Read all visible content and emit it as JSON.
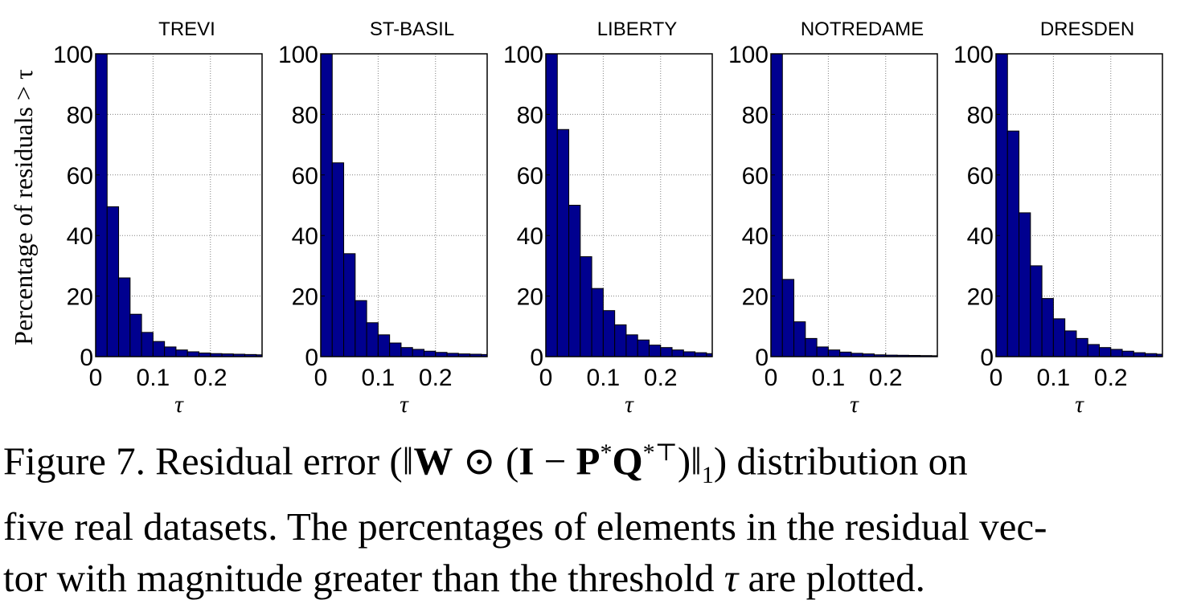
{
  "chart_data": [
    {
      "type": "bar",
      "title": "TREVI",
      "xlabel": "τ",
      "ylabel": "Percentage of residuals > τ",
      "xlim": [
        0,
        0.29
      ],
      "ylim": [
        0,
        100
      ],
      "xticks": [
        0,
        0.1,
        0.2
      ],
      "xtick_labels": [
        "0",
        "0.1",
        "0.2"
      ],
      "yticks": [
        0,
        20,
        40,
        60,
        80,
        100
      ],
      "ytick_labels": [
        "0",
        "20",
        "40",
        "60",
        "80",
        "100"
      ],
      "bin_width": 0.02,
      "grid": true,
      "x": [
        0,
        0.02,
        0.04,
        0.06,
        0.08,
        0.1,
        0.12,
        0.14,
        0.16,
        0.18,
        0.2,
        0.22,
        0.24,
        0.26,
        0.28
      ],
      "values": [
        100,
        49.5,
        26,
        14,
        8,
        5,
        3.2,
        2.2,
        1.6,
        1.2,
        1,
        0.9,
        0.8,
        0.7,
        0.6
      ]
    },
    {
      "type": "bar",
      "title": "ST-BASIL",
      "xlabel": "τ",
      "xlim": [
        0,
        0.29
      ],
      "ylim": [
        0,
        100
      ],
      "xticks": [
        0,
        0.1,
        0.2
      ],
      "xtick_labels": [
        "0",
        "0.1",
        "0.2"
      ],
      "yticks": [
        0,
        20,
        40,
        60,
        80,
        100
      ],
      "ytick_labels": [
        "0",
        "20",
        "40",
        "60",
        "80",
        "100"
      ],
      "bin_width": 0.02,
      "grid": true,
      "x": [
        0,
        0.02,
        0.04,
        0.06,
        0.08,
        0.1,
        0.12,
        0.14,
        0.16,
        0.18,
        0.2,
        0.22,
        0.24,
        0.26,
        0.28
      ],
      "values": [
        100,
        64,
        34,
        18.5,
        11.2,
        7.2,
        4.5,
        3,
        2.4,
        1.8,
        1.4,
        1.1,
        0.9,
        0.8,
        0.7
      ]
    },
    {
      "type": "bar",
      "title": "LIBERTY",
      "xlabel": "τ",
      "xlim": [
        0,
        0.29
      ],
      "ylim": [
        0,
        100
      ],
      "xticks": [
        0,
        0.1,
        0.2
      ],
      "xtick_labels": [
        "0",
        "0.1",
        "0.2"
      ],
      "yticks": [
        0,
        20,
        40,
        60,
        80,
        100
      ],
      "ytick_labels": [
        "0",
        "20",
        "40",
        "60",
        "80",
        "100"
      ],
      "bin_width": 0.02,
      "grid": true,
      "x": [
        0,
        0.02,
        0.04,
        0.06,
        0.08,
        0.1,
        0.12,
        0.14,
        0.16,
        0.18,
        0.2,
        0.22,
        0.24,
        0.26,
        0.28
      ],
      "values": [
        100,
        75,
        50,
        33,
        22.5,
        15.2,
        10.5,
        7.2,
        5.5,
        3.8,
        3,
        2.2,
        1.6,
        1.3,
        1
      ]
    },
    {
      "type": "bar",
      "title": "NOTREDAME",
      "xlabel": "τ",
      "xlim": [
        0,
        0.29
      ],
      "ylim": [
        0,
        100
      ],
      "xticks": [
        0,
        0.1,
        0.2
      ],
      "xtick_labels": [
        "0",
        "0.1",
        "0.2"
      ],
      "yticks": [
        0,
        20,
        40,
        60,
        80,
        100
      ],
      "ytick_labels": [
        "0",
        "20",
        "40",
        "60",
        "80",
        "100"
      ],
      "bin_width": 0.02,
      "grid": true,
      "x": [
        0,
        0.02,
        0.04,
        0.06,
        0.08,
        0.1,
        0.12,
        0.14,
        0.16,
        0.18,
        0.2,
        0.22,
        0.24,
        0.26,
        0.28
      ],
      "values": [
        100,
        25.5,
        11.5,
        6,
        3.2,
        2.2,
        1.5,
        1.1,
        0.9,
        0.6,
        0.5,
        0.45,
        0.4,
        0.35,
        0.3
      ]
    },
    {
      "type": "bar",
      "title": "DRESDEN",
      "xlabel": "τ",
      "xlim": [
        0,
        0.29
      ],
      "ylim": [
        0,
        100
      ],
      "xticks": [
        0,
        0.1,
        0.2
      ],
      "xtick_labels": [
        "0",
        "0.1",
        "0.2"
      ],
      "yticks": [
        0,
        20,
        40,
        60,
        80,
        100
      ],
      "ytick_labels": [
        "0",
        "20",
        "40",
        "60",
        "80",
        "100"
      ],
      "bin_width": 0.02,
      "grid": true,
      "x": [
        0,
        0.02,
        0.04,
        0.06,
        0.08,
        0.1,
        0.12,
        0.14,
        0.16,
        0.18,
        0.2,
        0.22,
        0.24,
        0.26,
        0.28
      ],
      "values": [
        100,
        74.5,
        47.5,
        30,
        19.2,
        12.5,
        8.5,
        6,
        4,
        3,
        2.4,
        1.8,
        1.3,
        1,
        0.8
      ]
    }
  ],
  "colors": {
    "bar_fill": "#00008f",
    "bar_edge": "#000000",
    "grid": "#808080",
    "axis": "#000000"
  },
  "caption": {
    "line1_a": "Figure 7. Residual error (‖",
    "line1_W": "W",
    "line1_odot": " ⊙ (",
    "line1_I": "I",
    "line1_minus": " − ",
    "line1_P": "P",
    "line1_star1": "*",
    "line1_Q": "Q",
    "line1_starT": "*⊤",
    "line1_close": ")‖",
    "line1_sub": "1",
    "line1_b": ") distribution on",
    "line2": "five real datasets. The percentages of elements in the residual vec-",
    "line3_a": "tor with magnitude greater than the threshold ",
    "line3_tau": "τ",
    "line3_b": " are plotted."
  }
}
